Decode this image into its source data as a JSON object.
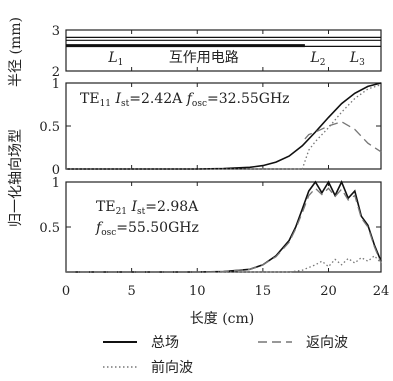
{
  "chart_data": {
    "type": "line",
    "xlabel": "长度 (cm)",
    "xlim": [
      0,
      24
    ],
    "x_ticks": [
      "0",
      "5",
      "10",
      "15",
      "20",
      "24"
    ],
    "x_tick_values": [
      0,
      5,
      10,
      15,
      20,
      24
    ],
    "panels": [
      {
        "id": "radius",
        "ylabel": "半径 (mm)",
        "ylim": [
          2,
          3
        ],
        "y_ticks": [
          "2",
          "3"
        ],
        "y_tick_values": [
          2,
          3
        ],
        "regions": [
          {
            "label": "L1",
            "x": 3.8
          },
          {
            "label": "互作用电路",
            "x": 10.5
          },
          {
            "label": "L2",
            "x": 19.2
          },
          {
            "label": "L3",
            "x": 22.2
          }
        ],
        "series": [
          {
            "key": "r1",
            "style": "solid",
            "x": [
              0,
              24
            ],
            "y": [
              2.75,
              2.75
            ]
          },
          {
            "key": "r2",
            "style": "solid",
            "x": [
              0,
              24
            ],
            "y": [
              2.82,
              2.82
            ]
          },
          {
            "key": "r3",
            "style": "solid",
            "x": [
              0,
              18.2
            ],
            "y": [
              2.62,
              2.62
            ]
          },
          {
            "key": "r4",
            "style": "solid",
            "x": [
              0,
              24
            ],
            "y": [
              2.6,
              2.6
            ]
          }
        ]
      },
      {
        "id": "te11",
        "ylim": [
          0,
          1
        ],
        "y_ticks": [
          "0",
          "0.5",
          "1"
        ],
        "y_tick_values": [
          0,
          0.5,
          1
        ],
        "annotation": "TE11 Ist=2.42A fosc=32.55GHz",
        "series": [
          {
            "name": "总场",
            "style": "solid",
            "x": [
              0,
              10,
              12,
              14,
              15,
              16,
              17,
              18,
              19,
              20,
              21,
              22,
              23,
              24
            ],
            "y": [
              0,
              0,
              0.005,
              0.02,
              0.04,
              0.08,
              0.15,
              0.27,
              0.43,
              0.6,
              0.76,
              0.88,
              0.96,
              1.0
            ]
          },
          {
            "name": "前向波",
            "style": "dotted",
            "x": [
              0,
              18,
              18.5,
              19,
              20,
              21,
              22,
              23,
              24
            ],
            "y": [
              0,
              0,
              0.22,
              0.32,
              0.48,
              0.66,
              0.82,
              0.93,
              0.98
            ]
          },
          {
            "name": "返向波",
            "style": "dashed",
            "x": [
              18.2,
              18.5,
              19,
              20,
              21,
              22,
              23,
              24
            ],
            "y": [
              0.35,
              0.4,
              0.43,
              0.5,
              0.55,
              0.46,
              0.3,
              0.2
            ]
          }
        ]
      },
      {
        "id": "te21",
        "ylim": [
          0,
          1
        ],
        "y_ticks": [
          "0.5",
          "1"
        ],
        "y_tick_values": [
          0.5,
          1
        ],
        "annotation": "TE21 Ist=2.98A fosc=55.50GHz",
        "series": [
          {
            "name": "总场",
            "style": "solid",
            "x": [
              0,
              10,
              12,
              14,
              15,
              16,
              17,
              17.5,
              18,
              18.5,
              19,
              19.5,
              20,
              20.5,
              21,
              21.5,
              22,
              22.5,
              23,
              23.5,
              24
            ],
            "y": [
              0,
              0,
              0.005,
              0.03,
              0.08,
              0.18,
              0.35,
              0.5,
              0.7,
              0.9,
              1.0,
              0.88,
              1.0,
              0.85,
              1.0,
              0.82,
              0.9,
              0.62,
              0.52,
              0.3,
              0.12
            ]
          },
          {
            "name": "前向波",
            "style": "dotted",
            "x": [
              0,
              17,
              18,
              19,
              19.5,
              20,
              20.5,
              21,
              21.5,
              22,
              22.5,
              23,
              23.5,
              24
            ],
            "y": [
              0,
              0,
              0.02,
              0.08,
              0.12,
              0.06,
              0.14,
              0.08,
              0.15,
              0.1,
              0.16,
              0.12,
              0.18,
              0.1
            ]
          },
          {
            "name": "返向波",
            "style": "dashed",
            "x": [
              0,
              10,
              12,
              14,
              15,
              16,
              17,
              17.5,
              18,
              18.5,
              19,
              19.5,
              20,
              20.5,
              21,
              21.5,
              22,
              22.5,
              23,
              23.5,
              24
            ],
            "y": [
              0,
              0,
              0.005,
              0.03,
              0.08,
              0.17,
              0.33,
              0.48,
              0.66,
              0.85,
              0.93,
              0.86,
              0.93,
              0.84,
              0.92,
              0.8,
              0.85,
              0.6,
              0.5,
              0.28,
              0.1
            ]
          }
        ]
      }
    ],
    "shared_ylabel": "归一化轴向场型",
    "legend": [
      {
        "label": "总场",
        "style": "solid"
      },
      {
        "label": "返向波",
        "style": "dashed"
      },
      {
        "label": "前向波",
        "style": "dotted"
      }
    ],
    "legend_position": "bottom"
  }
}
